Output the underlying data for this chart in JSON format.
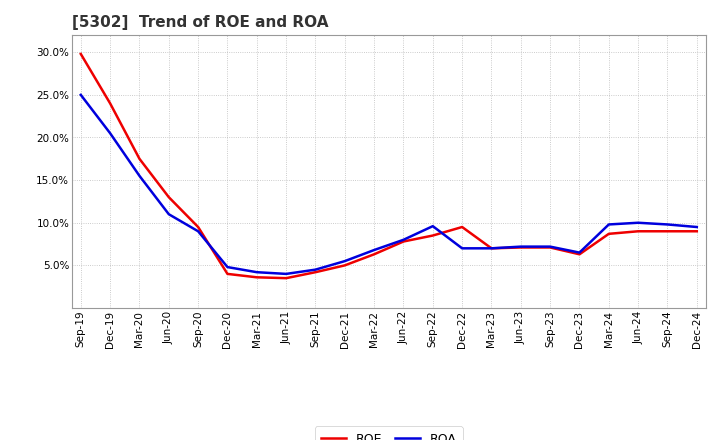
{
  "title": "[5302]  Trend of ROE and ROA",
  "x_labels": [
    "Sep-19",
    "Dec-19",
    "Mar-20",
    "Jun-20",
    "Sep-20",
    "Dec-20",
    "Mar-21",
    "Jun-21",
    "Sep-21",
    "Dec-21",
    "Mar-22",
    "Jun-22",
    "Sep-22",
    "Dec-22",
    "Mar-23",
    "Jun-23",
    "Sep-23",
    "Dec-23",
    "Mar-24",
    "Jun-24",
    "Sep-24",
    "Dec-24"
  ],
  "roe": [
    29.8,
    24.0,
    17.5,
    13.0,
    9.5,
    4.0,
    3.6,
    3.5,
    4.2,
    5.0,
    6.3,
    7.8,
    8.5,
    9.5,
    7.0,
    7.1,
    7.1,
    6.3,
    8.7,
    9.0,
    9.0,
    9.0
  ],
  "roa": [
    25.0,
    20.5,
    15.5,
    11.0,
    9.0,
    4.8,
    4.2,
    4.0,
    4.5,
    5.5,
    6.8,
    8.0,
    9.6,
    7.0,
    7.0,
    7.2,
    7.2,
    6.5,
    9.8,
    10.0,
    9.8,
    9.5
  ],
  "roe_color": "#ee0000",
  "roa_color": "#0000dd",
  "background_color": "#ffffff",
  "grid_color": "#bbbbbb",
  "ylim": [
    0.0,
    32.0
  ],
  "yticks": [
    5.0,
    10.0,
    15.0,
    20.0,
    25.0,
    30.0
  ],
  "legend_roe": "ROE",
  "legend_roa": "ROA",
  "line_width": 1.8,
  "title_fontsize": 11,
  "tick_fontsize": 7.5
}
